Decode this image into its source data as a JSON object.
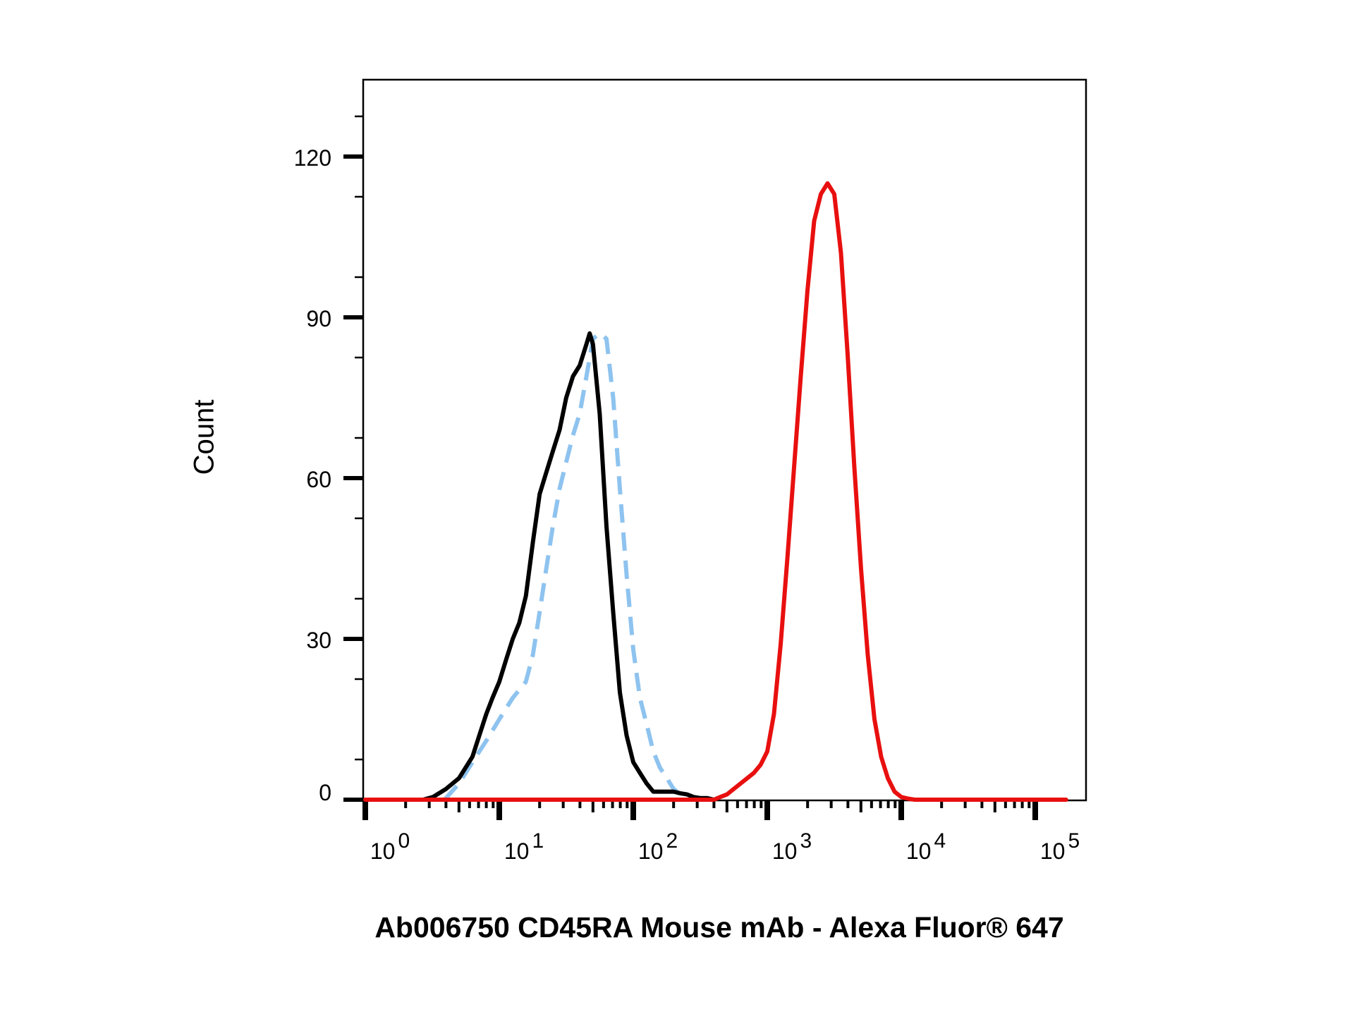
{
  "chart_data": {
    "type": "line",
    "title": "",
    "xlabel": "Ab006750 CD45RA Mouse mAb - Alexa Fluor® 647",
    "ylabel": "Count",
    "x_scale": "log",
    "xlim": [
      1,
      170000
    ],
    "ylim": [
      0,
      133
    ],
    "y_ticks": [
      {
        "value": 0,
        "label": "0"
      },
      {
        "value": 30,
        "label": "30"
      },
      {
        "value": 60,
        "label": "60"
      },
      {
        "value": 90,
        "label": "90"
      },
      {
        "value": 120,
        "label": "120"
      }
    ],
    "x_ticks": [
      {
        "value": 1,
        "base": "10",
        "exp": "0"
      },
      {
        "value": 10,
        "base": "10",
        "exp": "1"
      },
      {
        "value": 100,
        "base": "10",
        "exp": "2"
      },
      {
        "value": 1000,
        "base": "10",
        "exp": "3"
      },
      {
        "value": 10000,
        "base": "10",
        "exp": "4"
      },
      {
        "value": 100000,
        "base": "10",
        "exp": "5"
      }
    ],
    "grid": false,
    "legend": "none",
    "series": [
      {
        "color": "#8ec3ef",
        "style": "dashed",
        "x": [
          3.9,
          5,
          6.3,
          8,
          10,
          12.6,
          15.8,
          17.8,
          20,
          22.4,
          25.1,
          28.2,
          31.6,
          35.5,
          39.8,
          44.7,
          50,
          56.2,
          63.1,
          70.8,
          79.4,
          89.1,
          100,
          112,
          126,
          141,
          158,
          178,
          200,
          224,
          251,
          282,
          316
        ],
        "y": [
          0,
          3,
          7,
          11,
          15,
          19,
          22,
          27,
          35,
          43,
          51,
          58,
          63,
          68,
          72,
          79,
          86,
          87,
          86,
          75,
          58,
          42,
          28,
          19,
          14,
          9,
          6,
          4,
          2,
          1,
          0.5,
          0.2,
          0
        ]
      },
      {
        "color": "#000000",
        "style": "solid",
        "x": [
          2.7,
          3.2,
          4,
          5,
          6.3,
          7.1,
          8,
          8.9,
          10,
          11.2,
          12.6,
          14.1,
          15.8,
          17.8,
          20,
          22.4,
          25.1,
          28.2,
          31.6,
          35.5,
          39.8,
          44.7,
          47.3,
          50,
          56.2,
          63.1,
          70.8,
          79.4,
          89.1,
          100,
          112,
          126,
          141,
          158,
          178,
          200,
          224,
          251,
          282,
          316,
          355,
          400
        ],
        "y": [
          0,
          0.5,
          2,
          4,
          8,
          12,
          16,
          19,
          22,
          26,
          30,
          33,
          38,
          48,
          57,
          61,
          65,
          69,
          75,
          79,
          81,
          85,
          87,
          85,
          72,
          51,
          35,
          20,
          12,
          7,
          5,
          3,
          1.5,
          1.5,
          1.5,
          1.5,
          1.2,
          1,
          0.5,
          0.3,
          0.3,
          0
        ]
      },
      {
        "color": "#e8100f",
        "style": "solid",
        "x": [
          1,
          400,
          446,
          501,
          562,
          631,
          708,
          794,
          891,
          1000,
          1122,
          1259,
          1413,
          1585,
          1778,
          1995,
          2239,
          2512,
          2818,
          3162,
          3548,
          3981,
          4467,
          5012,
          5623,
          6310,
          7079,
          7943,
          8913,
          10000,
          11220,
          12589,
          170000
        ],
        "y": [
          0,
          0,
          0.5,
          1,
          2,
          3,
          4,
          5,
          6.5,
          9,
          16,
          29,
          45,
          62,
          79,
          95,
          108,
          113,
          115,
          113,
          102,
          83,
          62,
          43,
          27,
          15,
          8,
          4,
          1.5,
          0.5,
          0.2,
          0,
          0
        ]
      }
    ]
  }
}
